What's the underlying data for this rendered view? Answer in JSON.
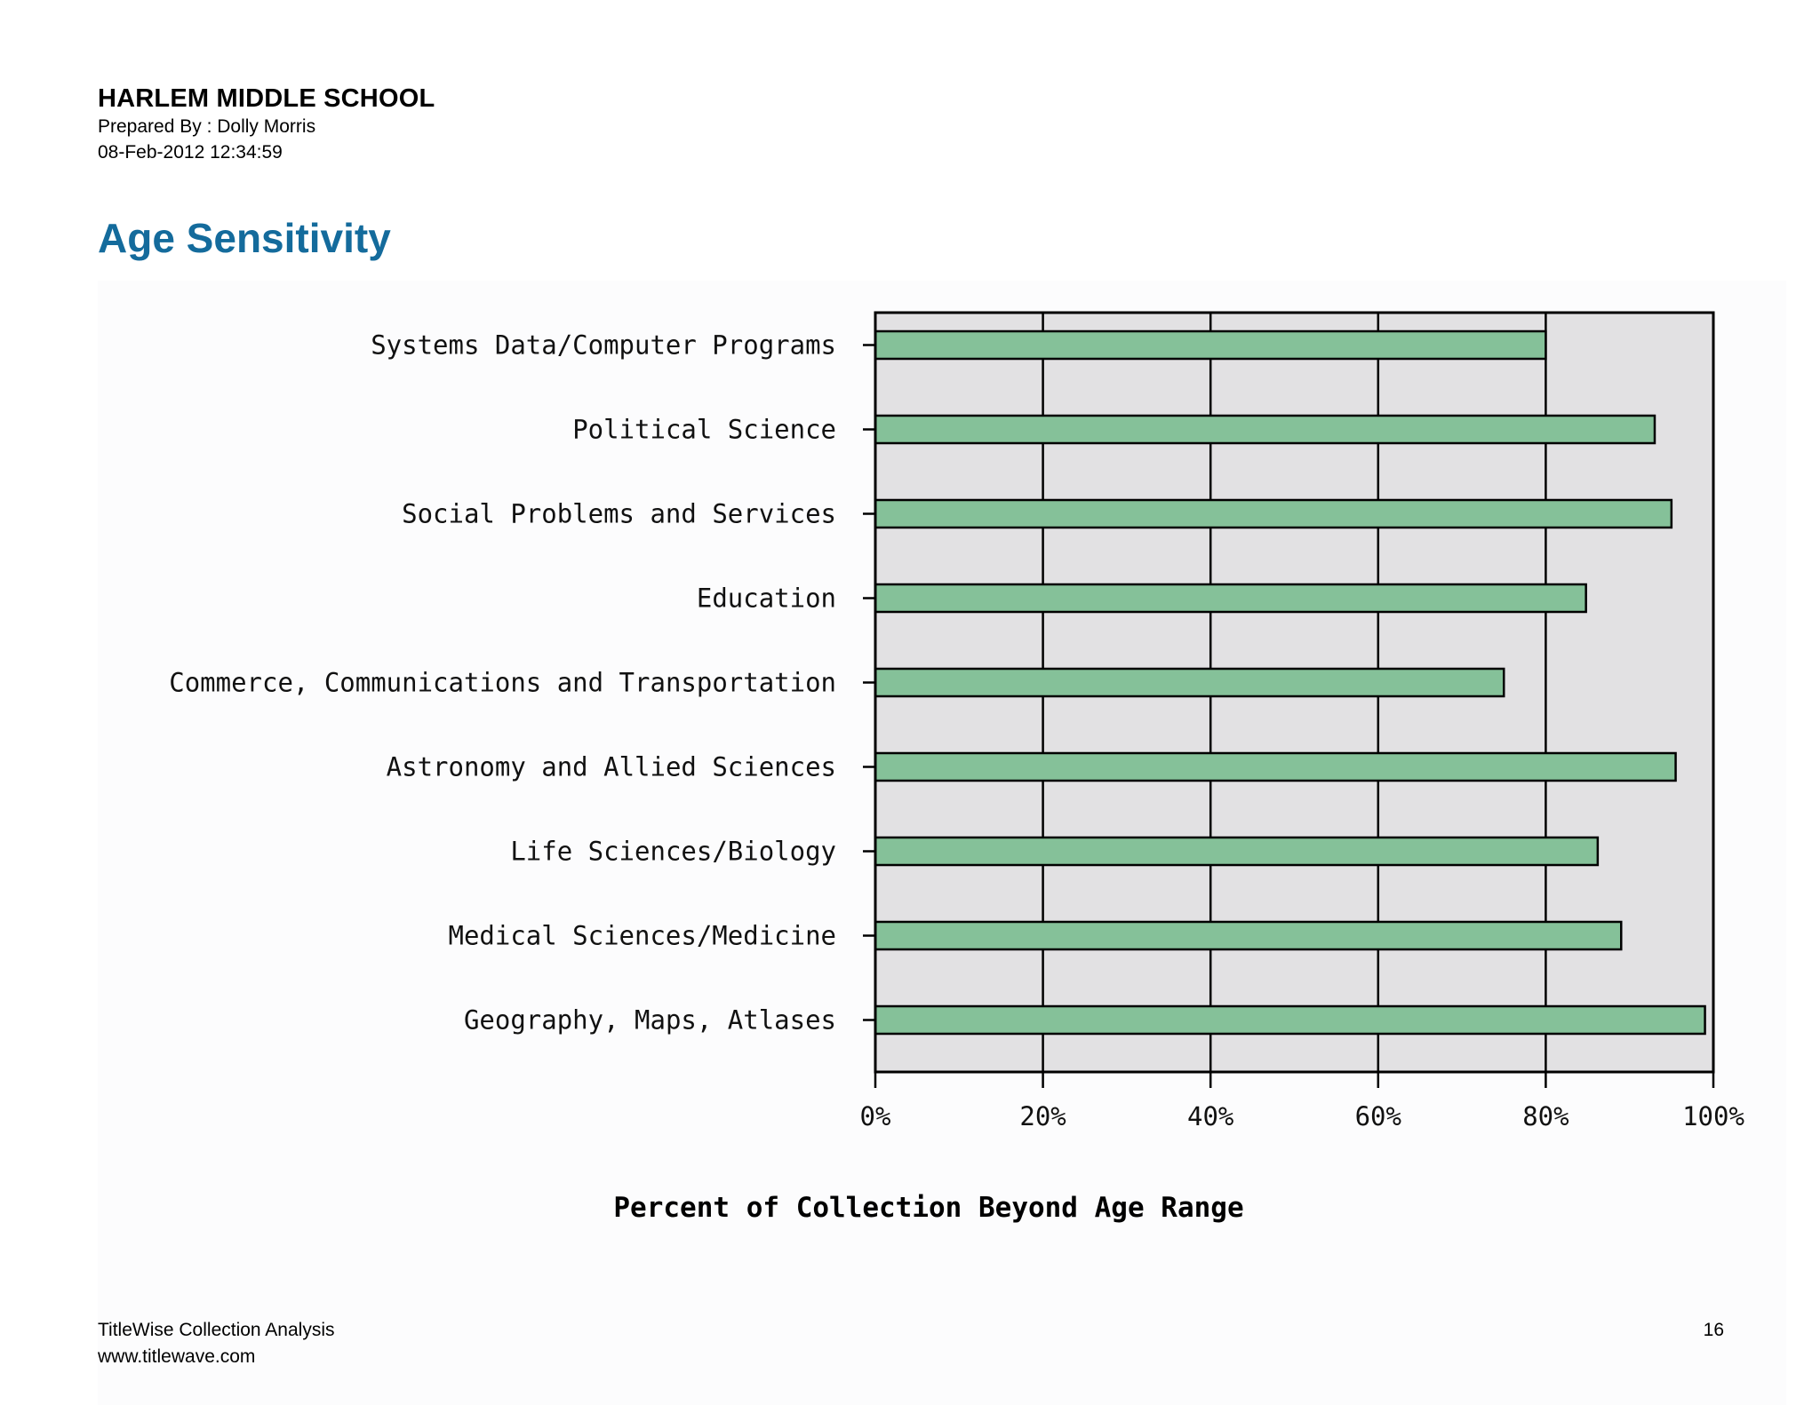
{
  "header": {
    "school_name": "HARLEM MIDDLE SCHOOL",
    "prepared_by": "Prepared By : Dolly Morris",
    "timestamp": "08-Feb-2012 12:34:59"
  },
  "report": {
    "title": "Age Sensitivity"
  },
  "colors": {
    "title": "#146b9c",
    "plot_background": "#e2e1e3",
    "bar_fill": "#85c199",
    "bar_stroke": "#000000",
    "gridline": "#000000"
  },
  "chart_data": {
    "type": "bar",
    "orientation": "horizontal",
    "title": "",
    "xlabel": "Percent of Collection Beyond Age Range",
    "ylabel": "",
    "xlim": [
      0,
      100
    ],
    "grid": true,
    "categories": [
      "Systems Data/Computer Programs",
      "Political Science",
      "Social Problems and Services",
      "Education",
      "Commerce, Communications and Transportation",
      "Astronomy and Allied Sciences",
      "Life Sciences/Biology",
      "Medical Sciences/Medicine",
      "Geography, Maps, Atlases"
    ],
    "values": [
      80,
      93,
      95,
      84.8,
      75,
      95.5,
      86.2,
      89,
      99
    ],
    "tick_values": [
      0,
      20,
      40,
      60,
      80,
      100
    ],
    "tick_labels": [
      "0%",
      "20%",
      "40%",
      "60%",
      "80%",
      "100%"
    ]
  },
  "footer": {
    "product": "TitleWise Collection Analysis",
    "url": "www.titlewave.com",
    "page_number": "16"
  }
}
